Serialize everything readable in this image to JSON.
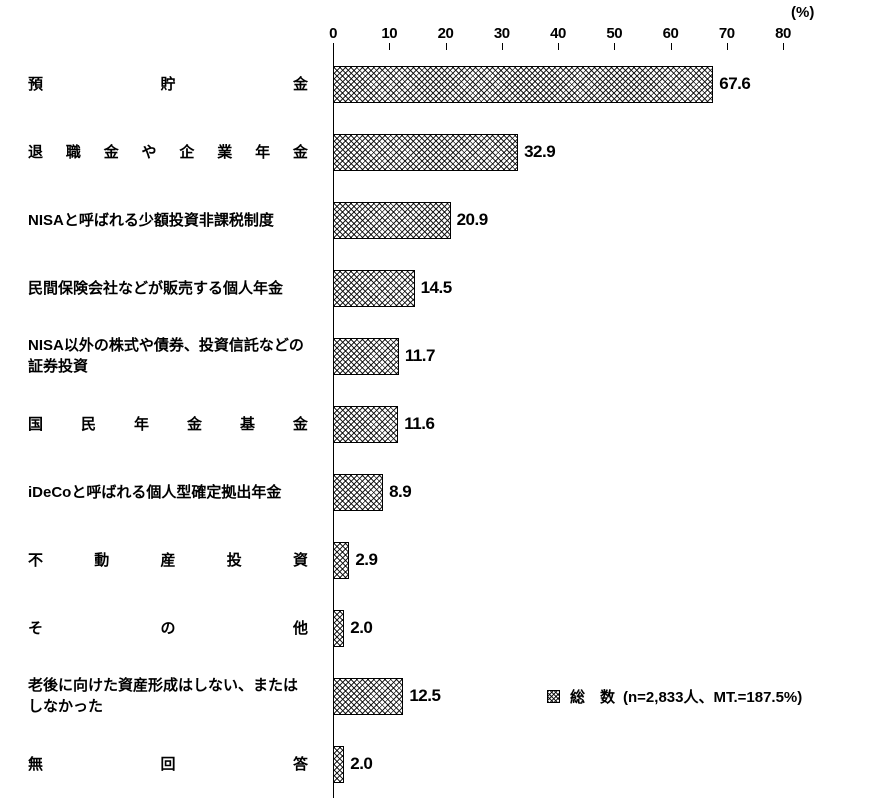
{
  "chart_data": {
    "type": "bar",
    "orientation": "horizontal",
    "unit_label": "(%)",
    "axis": {
      "min": 0,
      "max": 80,
      "ticks": [
        0,
        10,
        20,
        30,
        40,
        50,
        60,
        70,
        80
      ],
      "position": "top"
    },
    "grid": false,
    "bar_pattern": "crosshatch",
    "categories": [
      "預貯金",
      "退職金や企業年金",
      "NISAと呼ばれる少額投資非課税制度",
      "民間保険会社などが販売する個人年金",
      "NISA以外の株式や債券、投資信託などの証券投資",
      "国民年金基金",
      "iDeCoと呼ばれる個人型確定拠出年金",
      "不動産投資",
      "その他",
      "老後に向けた資産形成はしない、またはしなかった",
      "無回答"
    ],
    "justify": [
      true,
      true,
      false,
      false,
      false,
      true,
      false,
      true,
      true,
      false,
      true
    ],
    "values": [
      67.6,
      32.9,
      20.9,
      14.5,
      11.7,
      11.6,
      8.9,
      2.9,
      2.0,
      12.5,
      2.0
    ],
    "display_values": [
      "67.6",
      "32.9",
      "20.9",
      "14.5",
      "11.7",
      "11.6",
      "8.9",
      "2.9",
      "2.0",
      "12.5",
      "2.0"
    ],
    "legend": {
      "label": "総　数",
      "detail": "(n=2,833人、MT.=187.5%)",
      "position": "right-middle"
    }
  }
}
